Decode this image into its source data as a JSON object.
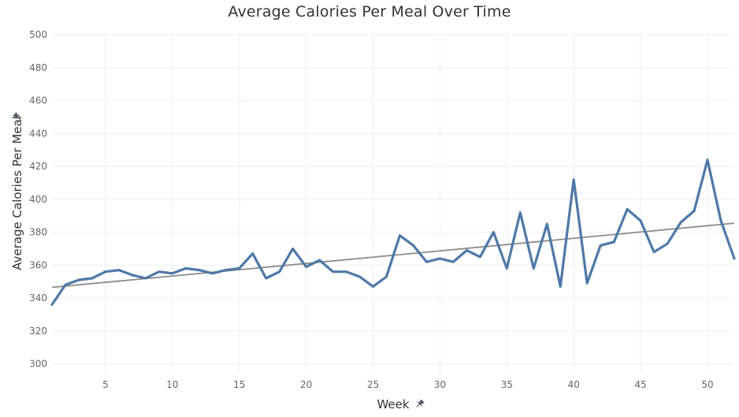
{
  "chart_data": {
    "type": "line",
    "title": "Average Calories Per Meal Over Time",
    "xlabel": "Week",
    "ylabel": "Average Calories Per Meal",
    "xlim": [
      1,
      52
    ],
    "ylim": [
      295,
      502
    ],
    "x_ticks": [
      5,
      10,
      15,
      20,
      25,
      30,
      35,
      40,
      45,
      50
    ],
    "y_ticks": [
      300,
      320,
      340,
      360,
      380,
      400,
      420,
      440,
      460,
      480,
      500
    ],
    "grid": true,
    "colors": {
      "series": "#4e79a7",
      "trend": "#8c8c8c",
      "grid": "#eeeeee",
      "pin_icon": "#555e6d"
    },
    "axis_icons": [
      "pin-icon",
      "pin-icon"
    ],
    "series": [
      {
        "x": [
          1,
          2,
          3,
          4,
          5,
          6,
          7,
          8,
          9,
          10,
          11,
          12,
          13,
          14,
          15,
          16,
          17,
          18,
          19,
          20,
          21,
          22,
          23,
          24,
          25,
          26,
          27,
          28,
          29,
          30,
          31,
          32,
          33,
          34,
          35,
          36,
          37,
          38,
          39,
          40,
          41,
          42,
          43,
          44,
          45,
          46,
          47,
          48,
          49,
          50,
          51,
          52
        ],
        "values": [
          336,
          348,
          351,
          352,
          356,
          357,
          354,
          352,
          356,
          355,
          358,
          357,
          355,
          357,
          358,
          367,
          352,
          356,
          370,
          359,
          363,
          356,
          356,
          353,
          347,
          353,
          378,
          372,
          362,
          364,
          362,
          369,
          365,
          380,
          358,
          392,
          358,
          385,
          347,
          412,
          349,
          372,
          374,
          394,
          387,
          368,
          373,
          386,
          393,
          424,
          387,
          364
        ]
      }
    ],
    "trend_line": {
      "x": [
        1,
        52
      ],
      "values": [
        346.5,
        385.5
      ]
    }
  }
}
